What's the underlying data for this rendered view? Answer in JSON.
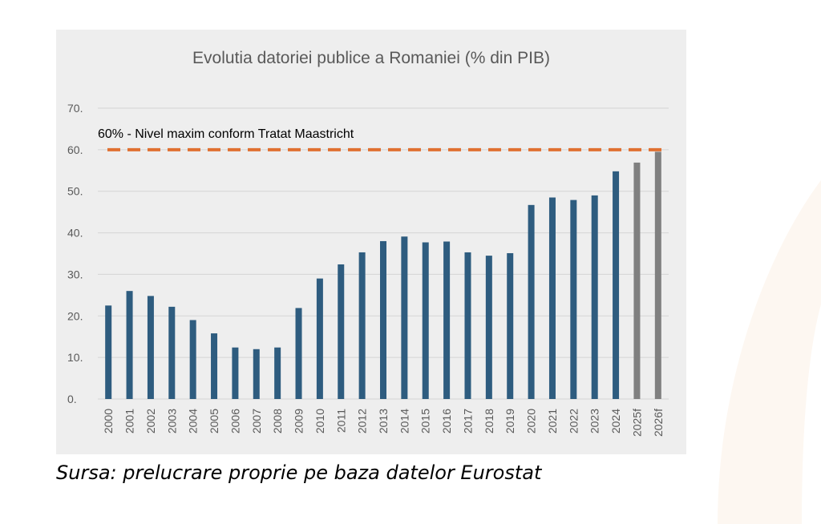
{
  "chart_data": {
    "type": "bar",
    "title": "Evolutia datoriei publice a Romaniei (% din PIB)",
    "xlabel": "",
    "ylabel": "",
    "ylim": [
      0,
      70
    ],
    "yticks": [
      "0.",
      "10.",
      "20.",
      "30.",
      "40.",
      "50.",
      "60.",
      "70."
    ],
    "grid": true,
    "categories": [
      "2000",
      "2001",
      "2002",
      "2003",
      "2004",
      "2005",
      "2006",
      "2007",
      "2008",
      "2009",
      "2010",
      "2011",
      "2012",
      "2013",
      "2014",
      "2015",
      "2016",
      "2017",
      "2018",
      "2019",
      "2020",
      "2021",
      "2022",
      "2023",
      "2024",
      "2025f",
      "2026f"
    ],
    "values": [
      22.5,
      26.0,
      24.8,
      22.2,
      19.0,
      15.8,
      12.4,
      12.0,
      12.4,
      21.9,
      29.0,
      32.4,
      35.3,
      38.0,
      39.1,
      37.7,
      37.9,
      35.3,
      34.5,
      35.1,
      46.7,
      48.5,
      47.9,
      49.0,
      54.8,
      56.9,
      59.5
    ],
    "bar_color": "#2e5c7f",
    "forecast_color": "#808080",
    "forecast_categories": [
      "2025f",
      "2026f"
    ],
    "reference_line": {
      "value": 60,
      "label": "60% - Nivel maxim conform Tratat Maastricht",
      "color": "#e07030"
    }
  },
  "source_note": "Sursa: prelucrare proprie pe baza datelor Eurostat"
}
